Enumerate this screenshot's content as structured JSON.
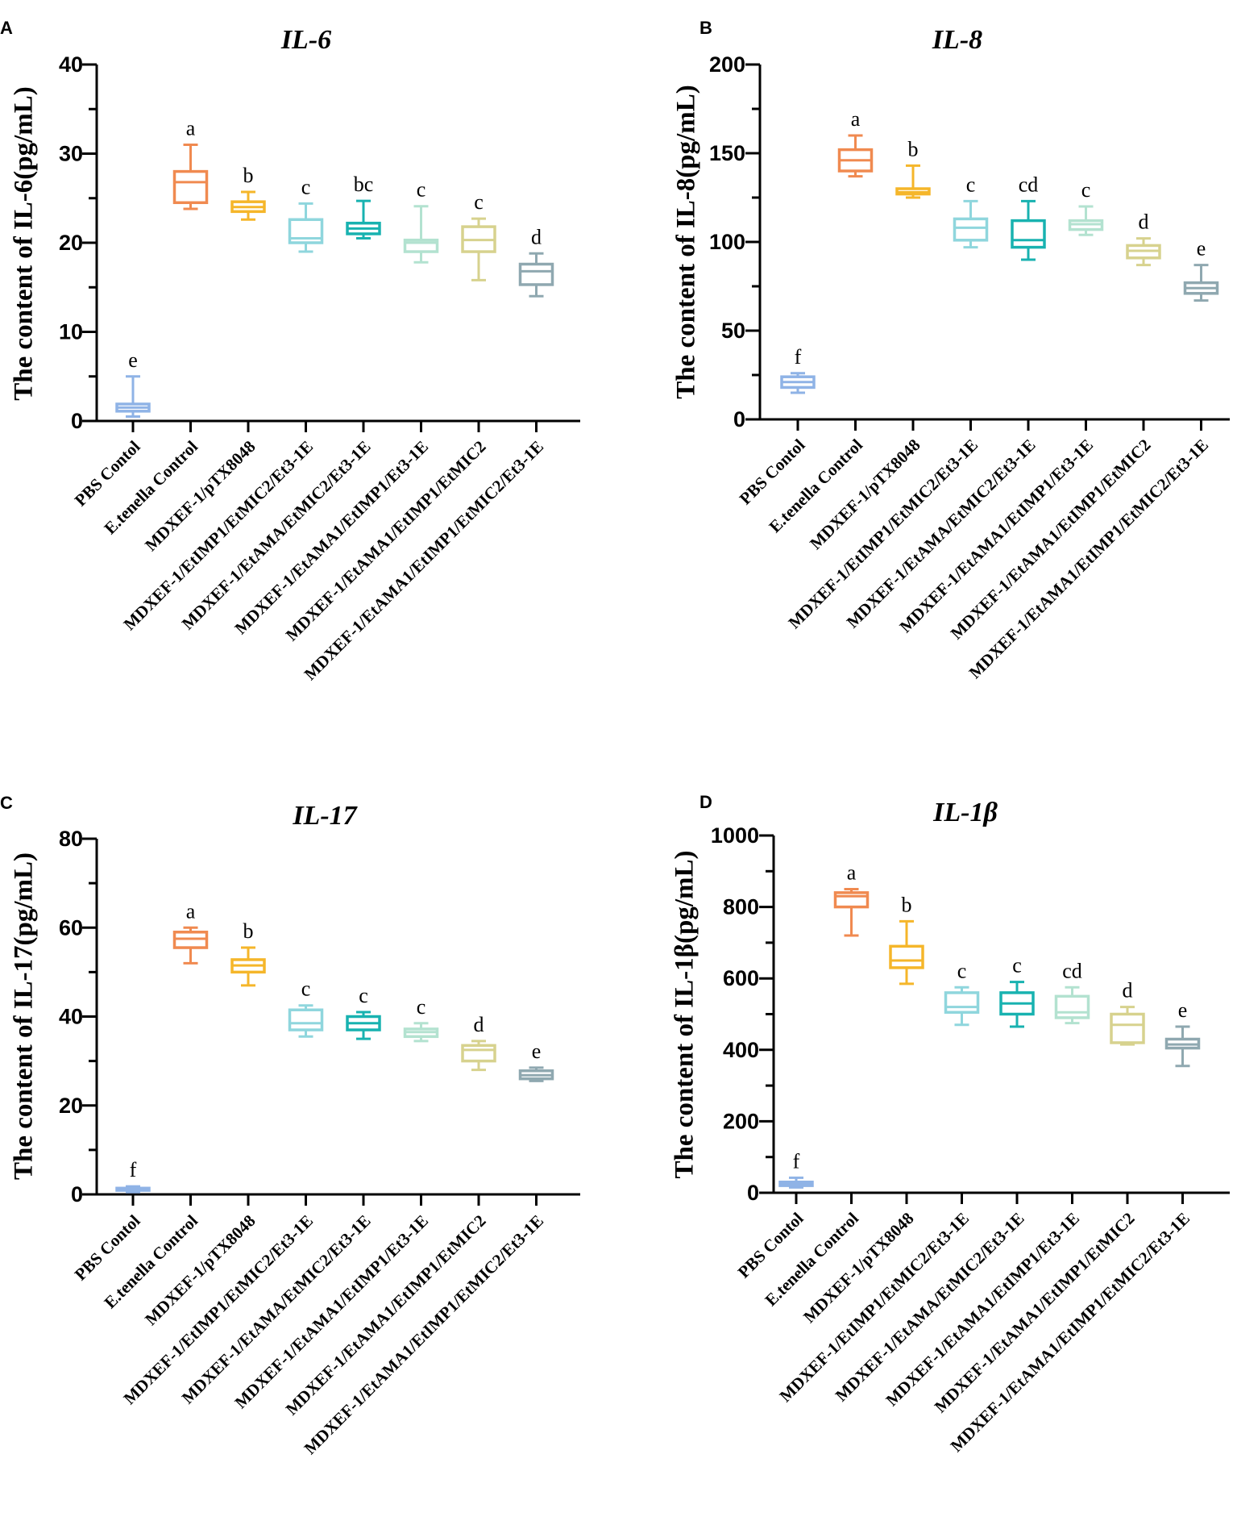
{
  "chart_data": [
    {
      "type": "box",
      "panel": "A",
      "title": "IL-6",
      "ylabel": "The content of IL-6(pg/mL)",
      "xlabel": "",
      "ylim": [
        0,
        40
      ],
      "yticks": [
        "0",
        "10",
        "20",
        "30",
        "40"
      ],
      "categories": [
        "PBS Contol",
        "E.tenella Control",
        "MDXEF-1/pTX8048",
        "MDXEF-1/EtIMP1/EtMIC2/Et3-1E",
        "MDXEF-1/EtAMA/EtMIC2/Et3-1E",
        "MDXEF-1/EtAMA1/EtIMP1/Et3-1E",
        "MDXEF-1/EtAMA1/EtIMP1/EtMIC2",
        "MDXEF-1/EtAMA1/EtIMP1/EtMIC2/Et3-1E"
      ],
      "boxes": [
        {
          "min": 0.5,
          "q1": 1.1,
          "median": 1.5,
          "q3": 1.9,
          "max": 5.0,
          "letter": "e"
        },
        {
          "min": 23.8,
          "q1": 24.5,
          "median": 26.8,
          "q3": 28.0,
          "max": 31.0,
          "letter": "a"
        },
        {
          "min": 22.6,
          "q1": 23.5,
          "median": 24.0,
          "q3": 24.6,
          "max": 25.7,
          "letter": "b"
        },
        {
          "min": 19.0,
          "q1": 20.0,
          "median": 20.5,
          "q3": 22.6,
          "max": 24.4,
          "letter": "c"
        },
        {
          "min": 20.5,
          "q1": 21.0,
          "median": 21.6,
          "q3": 22.2,
          "max": 24.7,
          "letter": "bc"
        },
        {
          "min": 17.8,
          "q1": 19.0,
          "median": 20.0,
          "q3": 20.3,
          "max": 24.1,
          "letter": "c"
        },
        {
          "min": 15.8,
          "q1": 19.0,
          "median": 20.3,
          "q3": 21.8,
          "max": 22.7,
          "letter": "c"
        },
        {
          "min": 14.0,
          "q1": 15.3,
          "median": 16.8,
          "q3": 17.6,
          "max": 18.8,
          "letter": "d"
        }
      ]
    },
    {
      "type": "box",
      "panel": "B",
      "title": "IL-8",
      "ylabel": "The content of IL-8(pg/mL)",
      "xlabel": "",
      "ylim": [
        0,
        200
      ],
      "yticks": [
        "0",
        "50",
        "100",
        "150",
        "200"
      ],
      "categories": [
        "PBS Contol",
        "E.tenella Control",
        "MDXEF-1/pTX8048",
        "MDXEF-1/EtIMP1/EtMIC2/Et3-1E",
        "MDXEF-1/EtAMA/EtMIC2/Et3-1E",
        "MDXEF-1/EtAMA1/EtIMP1/Et3-1E",
        "MDXEF-1/EtAMA1/EtIMP1/EtMIC2",
        "MDXEF-1/EtAMA1/EtIMP1/EtMIC2/Et3-1E"
      ],
      "boxes": [
        {
          "min": 15,
          "q1": 18,
          "median": 21,
          "q3": 24,
          "max": 26,
          "letter": "f"
        },
        {
          "min": 137,
          "q1": 140,
          "median": 146,
          "q3": 152,
          "max": 160,
          "letter": "a"
        },
        {
          "min": 125,
          "q1": 127,
          "median": 128,
          "q3": 130,
          "max": 143,
          "letter": "b"
        },
        {
          "min": 97,
          "q1": 101,
          "median": 108,
          "q3": 113,
          "max": 123,
          "letter": "c"
        },
        {
          "min": 90,
          "q1": 97,
          "median": 101,
          "q3": 112,
          "max": 123,
          "letter": "cd"
        },
        {
          "min": 104,
          "q1": 107,
          "median": 110,
          "q3": 112,
          "max": 120,
          "letter": "c"
        },
        {
          "min": 87,
          "q1": 91,
          "median": 95,
          "q3": 98,
          "max": 102,
          "letter": "d"
        },
        {
          "min": 67,
          "q1": 71,
          "median": 74,
          "q3": 77,
          "max": 87,
          "letter": "e"
        }
      ]
    },
    {
      "type": "box",
      "panel": "C",
      "title": "IL-17",
      "ylabel": "The content of IL-17(pg/mL)",
      "xlabel": "",
      "ylim": [
        0,
        80
      ],
      "yticks": [
        "0",
        "20",
        "40",
        "60",
        "80"
      ],
      "categories": [
        "PBS Contol",
        "E.tenella Control",
        "MDXEF-1/pTX8048",
        "MDXEF-1/EtIMP1/EtMIC2/Et3-1E",
        "MDXEF-1/EtAMA/EtMIC2/Et3-1E",
        "MDXEF-1/EtAMA1/EtIMP1/Et3-1E",
        "MDXEF-1/EtAMA1/EtIMP1/EtMIC2",
        "MDXEF-1/EtAMA1/EtIMP1/EtMIC2/Et3-1E"
      ],
      "boxes": [
        {
          "min": 0.5,
          "q1": 0.9,
          "median": 1.1,
          "q3": 1.4,
          "max": 1.8,
          "letter": "f"
        },
        {
          "min": 52,
          "q1": 55.5,
          "median": 57.5,
          "q3": 59,
          "max": 60,
          "letter": "a"
        },
        {
          "min": 47,
          "q1": 50,
          "median": 51.5,
          "q3": 52.8,
          "max": 55.5,
          "letter": "b"
        },
        {
          "min": 35.5,
          "q1": 37,
          "median": 38.5,
          "q3": 41.5,
          "max": 42.5,
          "letter": "c"
        },
        {
          "min": 35,
          "q1": 37,
          "median": 38.5,
          "q3": 40,
          "max": 41,
          "letter": "c"
        },
        {
          "min": 34.5,
          "q1": 35.5,
          "median": 36.5,
          "q3": 37.2,
          "max": 38.5,
          "letter": "c"
        },
        {
          "min": 28,
          "q1": 30,
          "median": 32.5,
          "q3": 33.5,
          "max": 34.5,
          "letter": "d"
        },
        {
          "min": 25.5,
          "q1": 26,
          "median": 26.8,
          "q3": 27.8,
          "max": 28.5,
          "letter": "e"
        }
      ]
    },
    {
      "type": "box",
      "panel": "D",
      "title": "IL-1β",
      "ylabel": "The content of IL-1β(pg/mL)",
      "xlabel": "",
      "ylim": [
        0,
        1000
      ],
      "yticks": [
        "0",
        "200",
        "400",
        "600",
        "800",
        "1000"
      ],
      "categories": [
        "PBS Contol",
        "E.tenella Control",
        "MDXEF-1/pTX8048",
        "MDXEF-1/EtIMP1/EtMIC2/Et3-1E",
        "MDXEF-1/EtAMA/EtMIC2/Et3-1E",
        "MDXEF-1/EtAMA1/EtIMP1/Et3-1E",
        "MDXEF-1/EtAMA1/EtIMP1/EtMIC2",
        "MDXEF-1/EtAMA1/EtIMP1/EtMIC2/Et3-1E"
      ],
      "boxes": [
        {
          "min": 15,
          "q1": 20,
          "median": 25,
          "q3": 30,
          "max": 42,
          "letter": "f"
        },
        {
          "min": 720,
          "q1": 800,
          "median": 830,
          "q3": 840,
          "max": 850,
          "letter": "a"
        },
        {
          "min": 585,
          "q1": 630,
          "median": 650,
          "q3": 690,
          "max": 760,
          "letter": "b"
        },
        {
          "min": 470,
          "q1": 505,
          "median": 520,
          "q3": 560,
          "max": 575,
          "letter": "c"
        },
        {
          "min": 465,
          "q1": 500,
          "median": 530,
          "q3": 560,
          "max": 590,
          "letter": "c"
        },
        {
          "min": 475,
          "q1": 490,
          "median": 505,
          "q3": 550,
          "max": 575,
          "letter": "cd"
        },
        {
          "min": 415,
          "q1": 420,
          "median": 470,
          "q3": 500,
          "max": 520,
          "letter": "d"
        },
        {
          "min": 355,
          "q1": 405,
          "median": 415,
          "q3": 430,
          "max": 465,
          "letter": "e"
        }
      ]
    }
  ],
  "colors": [
    "#8fb3e6",
    "#f08a50",
    "#f5b62a",
    "#8fd6dd",
    "#18b2b0",
    "#b3e2d0",
    "#d7d28e",
    "#8fa8b0"
  ]
}
